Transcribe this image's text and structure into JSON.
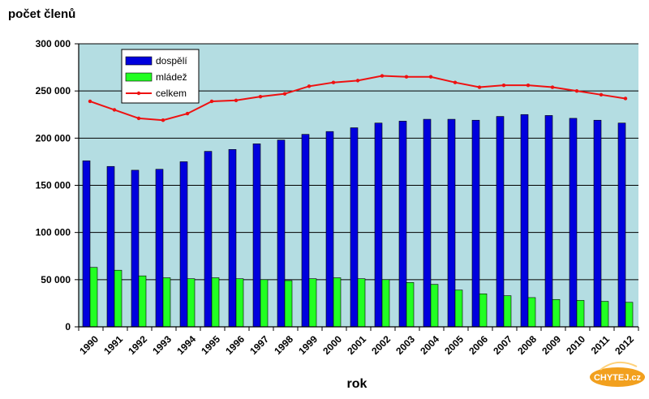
{
  "chart_data": {
    "type": "bar",
    "ylabel": "počet členů",
    "xlabel": "rok",
    "ylim": [
      0,
      300000
    ],
    "yticks": [
      "0",
      "50 000",
      "100 000",
      "150 000",
      "200 000",
      "250 000",
      "300 000"
    ],
    "ytick_values": [
      0,
      50000,
      100000,
      150000,
      200000,
      250000,
      300000
    ],
    "grid": true,
    "categories": [
      "1990",
      "1991",
      "1992",
      "1993",
      "1994",
      "1995",
      "1996",
      "1997",
      "1998",
      "1999",
      "2000",
      "2001",
      "2002",
      "2003",
      "2004",
      "2005",
      "2006",
      "2007",
      "2008",
      "2009",
      "2010",
      "2011",
      "2012"
    ],
    "series": [
      {
        "name": "dospělí",
        "type": "bar",
        "color": "#0000dd",
        "values": [
          176000,
          170000,
          166000,
          167000,
          175000,
          186000,
          188000,
          194000,
          198000,
          204000,
          207000,
          211000,
          216000,
          218000,
          220000,
          220000,
          219000,
          223000,
          225000,
          224000,
          221000,
          219000,
          216000
        ]
      },
      {
        "name": "mládež",
        "type": "bar",
        "color": "#22ff22",
        "values": [
          63000,
          60000,
          54000,
          52000,
          51000,
          52000,
          51000,
          50000,
          49000,
          51000,
          52000,
          51000,
          50000,
          47000,
          45000,
          39000,
          35000,
          33000,
          31000,
          29000,
          28000,
          27000,
          26000
        ]
      },
      {
        "name": "celkem",
        "type": "line",
        "color": "#ee1111",
        "values": [
          239000,
          230000,
          221000,
          219000,
          226000,
          239000,
          240000,
          244000,
          247000,
          255000,
          259000,
          261000,
          266000,
          265000,
          265000,
          259000,
          254000,
          256000,
          256000,
          254000,
          250000,
          246000,
          242000
        ]
      }
    ],
    "legend_position": "top-left",
    "plot_background": "#b4dde2"
  },
  "watermark": {
    "text": "CHYTEJ.cz",
    "color": "#f2a01e"
  }
}
